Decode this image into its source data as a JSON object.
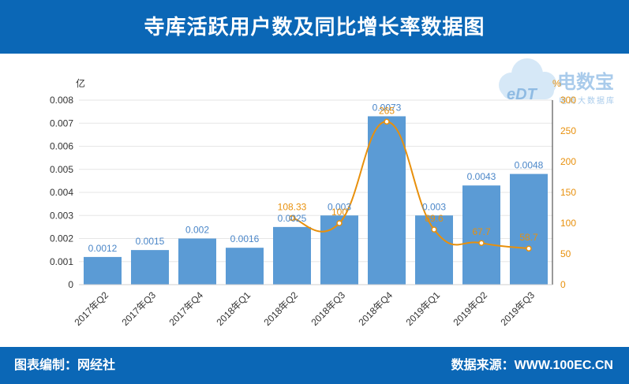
{
  "header": {
    "title": "寺库活跃用户数及同比增长率数据图"
  },
  "footer": {
    "left": "图表编制：网经社",
    "right": "数据来源：WWW.100EC.CN"
  },
  "watermark": {
    "brand": "电数宝",
    "sub": "电商大数据库",
    "mark": "eDT"
  },
  "colors": {
    "header_bg": "#0b67b6",
    "bar": "#5b9bd5",
    "line": "#e8900c",
    "bar_label": "#4a86c8"
  },
  "chart_data": {
    "type": "bar",
    "categories": [
      "2017年Q2",
      "2017年Q3",
      "2017年Q4",
      "2018年Q1",
      "2018年Q2",
      "2018年Q3",
      "2018年Q4",
      "2019年Q1",
      "2019年Q2",
      "2019年Q3"
    ],
    "left_unit": "亿",
    "right_unit": "%",
    "ylim": [
      0,
      0.008
    ],
    "yticks": [
      "0",
      "0.001",
      "0.002",
      "0.003",
      "0.004",
      "0.005",
      "0.006",
      "0.007",
      "0.008"
    ],
    "y2lim": [
      0,
      300
    ],
    "y2ticks": [
      "0",
      "50",
      "100",
      "150",
      "200",
      "250",
      "300"
    ],
    "series": [
      {
        "type": "bar",
        "axis": "left",
        "values": [
          0.0012,
          0.0015,
          0.002,
          0.0016,
          0.0025,
          0.003,
          0.0073,
          0.003,
          0.0043,
          0.0048
        ],
        "labels": [
          "0.0012",
          "0.0015",
          "0.002",
          "0.0016",
          "0.0025",
          "0.003",
          "0.0073",
          "0.003",
          "0.0043",
          "0.0048"
        ]
      },
      {
        "type": "line",
        "axis": "right",
        "values": [
          null,
          null,
          null,
          null,
          108.33,
          100,
          265,
          89.6,
          67.7,
          58.7
        ],
        "labels": [
          "",
          "",
          "",
          "",
          "108.33",
          "100",
          "265",
          "89.6",
          "67.7",
          "58.7"
        ]
      }
    ],
    "grid": true
  }
}
